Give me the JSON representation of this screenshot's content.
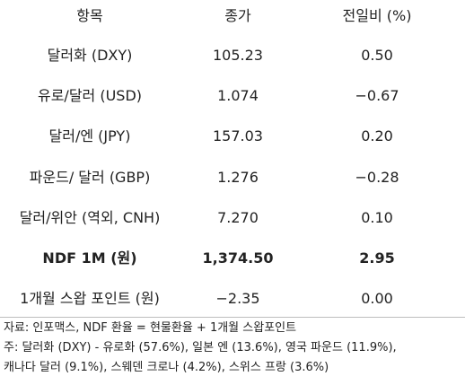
{
  "table": {
    "header": [
      "항목",
      "종가",
      "전일비 (%)"
    ],
    "rows": [
      [
        "달러화 (DXY)",
        "105.23",
        "0.50"
      ],
      [
        "유로/달러 (USD)",
        "1.074",
        "−0.67"
      ],
      [
        "달러/엔 (JPY)",
        "157.03",
        "0.20"
      ],
      [
        "파운드/ 달러 (GBP)",
        "1.276",
        "−0.28"
      ],
      [
        "달러/위안 (역외, CNH)",
        "7.270",
        "0.10"
      ],
      [
        "NDF 1M (원)",
        "1,374.50",
        "2.95"
      ],
      [
        "1개월 스왑 포인트 (원)",
        "−2.35",
        "0.00"
      ]
    ]
  },
  "notes": [
    "자료: 인포맥스, NDF 환율 = 현물환율 + 1개월 스왑포인트",
    "주: 달러화 (DXY) - 유로화 (57.6%), 일본 엔 (13.6%), 영국 파운드 (11.9%),",
    "캐나다 달러 (9.1%), 스웨덴 크로나 (4.2%), 스위스 프랑 (3.6%)"
  ]
}
